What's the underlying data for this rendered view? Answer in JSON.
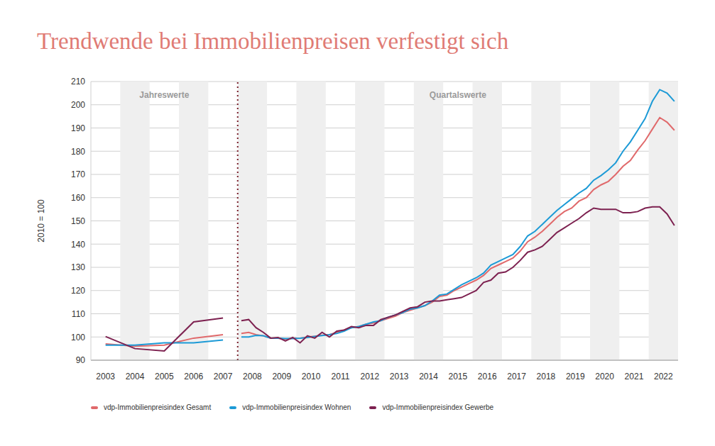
{
  "chart_data": {
    "type": "line",
    "title": "Trendwende bei Immobilienpreisen verfestigt sich",
    "y_label": "2010 = 100",
    "grid": true,
    "sections": [
      {
        "label": "Jahreswerte",
        "xlim": [
          2003,
          2008
        ]
      },
      {
        "label": "Quartalswerte",
        "xlim": [
          2008,
          2023
        ]
      }
    ],
    "xlim": [
      2003,
      2023
    ],
    "xticks": [
      {
        "value": 2003.5,
        "label": "2003"
      },
      {
        "value": 2004.5,
        "label": "2004"
      },
      {
        "value": 2005.5,
        "label": "2005"
      },
      {
        "value": 2006.5,
        "label": "2006"
      },
      {
        "value": 2007.5,
        "label": "2007"
      },
      {
        "value": 2008.5,
        "label": "2008"
      },
      {
        "value": 2009.5,
        "label": "2009"
      },
      {
        "value": 2010.5,
        "label": "2010"
      },
      {
        "value": 2011.5,
        "label": "2011"
      },
      {
        "value": 2012.5,
        "label": "2012"
      },
      {
        "value": 2013.5,
        "label": "2013"
      },
      {
        "value": 2014.5,
        "label": "2014"
      },
      {
        "value": 2015.5,
        "label": "2015"
      },
      {
        "value": 2016.5,
        "label": "2016"
      },
      {
        "value": 2017.5,
        "label": "2017"
      },
      {
        "value": 2018.5,
        "label": "2018"
      },
      {
        "value": 2019.5,
        "label": "2019"
      },
      {
        "value": 2020.5,
        "label": "2020"
      },
      {
        "value": 2021.5,
        "label": "2021"
      },
      {
        "value": 2022.5,
        "label": "2022"
      }
    ],
    "ylim": [
      90,
      210
    ],
    "yticks": [
      90,
      100,
      110,
      120,
      130,
      140,
      150,
      160,
      170,
      180,
      190,
      200,
      210
    ],
    "x": [
      2003.5,
      2004.5,
      2005.5,
      2006.5,
      2007.5,
      2008.125,
      2008.375,
      2008.625,
      2008.875,
      2009.125,
      2009.375,
      2009.625,
      2009.875,
      2010.125,
      2010.375,
      2010.625,
      2010.875,
      2011.125,
      2011.375,
      2011.625,
      2011.875,
      2012.125,
      2012.375,
      2012.625,
      2012.875,
      2013.125,
      2013.375,
      2013.625,
      2013.875,
      2014.125,
      2014.375,
      2014.625,
      2014.875,
      2015.125,
      2015.375,
      2015.625,
      2015.875,
      2016.125,
      2016.375,
      2016.625,
      2016.875,
      2017.125,
      2017.375,
      2017.625,
      2017.875,
      2018.125,
      2018.375,
      2018.625,
      2018.875,
      2019.125,
      2019.375,
      2019.625,
      2019.875,
      2020.125,
      2020.375,
      2020.625,
      2020.875,
      2021.125,
      2021.375,
      2021.625,
      2021.875,
      2022.125,
      2022.375,
      2022.625,
      2022.875
    ],
    "series": [
      {
        "name": "vdp-Immobilienpreisindex Gesamt",
        "color": "#e0696b",
        "values": [
          97,
          96,
          96.5,
          99.5,
          101,
          101.5,
          102,
          101,
          100.5,
          99.5,
          99.5,
          99,
          99.5,
          99.5,
          100,
          100.3,
          100.8,
          101,
          102,
          103,
          104,
          104.5,
          105.5,
          106,
          107,
          108,
          109,
          110.5,
          111.5,
          112.5,
          113.5,
          115,
          117.5,
          118,
          120,
          121.5,
          123,
          124.5,
          126.5,
          129.5,
          131,
          132.5,
          134,
          137,
          141,
          143,
          145.5,
          148.5,
          151.5,
          154,
          155.5,
          158.5,
          160,
          163.5,
          165.5,
          167,
          170,
          173.5,
          176,
          180.5,
          184.5,
          189.5,
          194.5,
          192.5,
          189
        ]
      },
      {
        "name": "vdp-Immobilienpreisindex Wohnen",
        "color": "#1c9ad6",
        "values": [
          96.5,
          96.5,
          97.5,
          97.5,
          98.7,
          100,
          100,
          100.7,
          100.5,
          99.5,
          99.5,
          99.3,
          99.3,
          99.5,
          99.8,
          100.2,
          100.6,
          101,
          101.5,
          102.5,
          104,
          104.5,
          105.5,
          106.5,
          107,
          108.5,
          109.5,
          110.5,
          112,
          112.5,
          113.5,
          115.5,
          118,
          118.5,
          120.5,
          122.5,
          124,
          125.5,
          127.5,
          131,
          132.5,
          134,
          135.5,
          139,
          143.5,
          145.5,
          148.5,
          151.5,
          154.5,
          157,
          159.5,
          162,
          164,
          167.5,
          169.5,
          172,
          175,
          180,
          184,
          189,
          194,
          201.5,
          206.5,
          205,
          201.5
        ]
      },
      {
        "name": "vdp-Immobilienpreisindex Gewerbe",
        "color": "#7d2150",
        "values": [
          100.2,
          95,
          94,
          106.5,
          108.2,
          107,
          107.5,
          104,
          102,
          99.5,
          99.8,
          98.3,
          99.8,
          97.5,
          100.5,
          99.5,
          102,
          100,
          102.5,
          103,
          104.5,
          104,
          105,
          105,
          107.5,
          108.5,
          109.5,
          111,
          112.5,
          113,
          115,
          115.5,
          115.5,
          116,
          116.5,
          117,
          118.5,
          120,
          123.5,
          124.5,
          127.5,
          128,
          130,
          133,
          136.5,
          137.5,
          139,
          142,
          145,
          147,
          149,
          151,
          153.5,
          155.5,
          155,
          155,
          155,
          153.5,
          153.5,
          154,
          155.5,
          156,
          156,
          153,
          148
        ]
      }
    ]
  }
}
